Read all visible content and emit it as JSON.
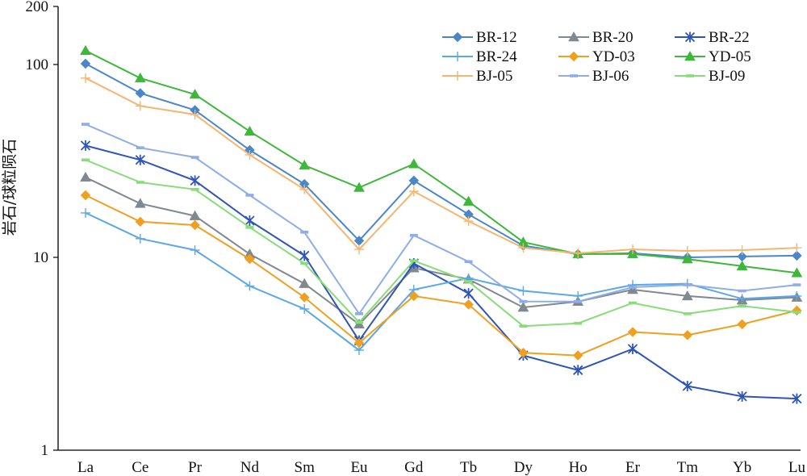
{
  "chart_data": {
    "type": "line",
    "xlabel": "",
    "ylabel": "岩石/球粒陨石",
    "yscale": "log",
    "ylim": [
      1,
      200
    ],
    "yticks": [
      "1",
      "10",
      "100",
      "200"
    ],
    "categories": [
      "La",
      "Ce",
      "Pr",
      "Nd",
      "Sm",
      "Eu",
      "Gd",
      "Tb",
      "Dy",
      "Ho",
      "Er",
      "Tm",
      "Yb",
      "Lu"
    ],
    "grid": false,
    "legend_position": "top-right",
    "series": [
      {
        "name": "BR-12",
        "color": "#4A86C8",
        "marker": "diamond",
        "values": [
          101,
          71,
          58,
          36,
          24,
          12.2,
          25,
          16.7,
          11.5,
          10.4,
          10.5,
          10,
          10.1,
          10.2
        ]
      },
      {
        "name": "BR-20",
        "color": "#808890",
        "marker": "triangle",
        "values": [
          26,
          19,
          16.4,
          10.4,
          7.3,
          4.5,
          8.8,
          7.7,
          5.5,
          5.9,
          6.8,
          6.3,
          6,
          6.2
        ]
      },
      {
        "name": "BR-22",
        "color": "#2F55B8",
        "marker": "star",
        "values": [
          38,
          32,
          25,
          15.5,
          10.2,
          3.7,
          9.3,
          6.5,
          3.1,
          2.6,
          3.35,
          2.15,
          1.9,
          1.85
        ]
      },
      {
        "name": "BR-24",
        "color": "#5AA8E8",
        "marker": "plus",
        "values": [
          17,
          12.5,
          10.9,
          7.1,
          5.4,
          3.3,
          6.8,
          7.8,
          6.7,
          6.3,
          7.2,
          7.3,
          6.1,
          6.3
        ]
      },
      {
        "name": "YD-03",
        "color": "#F0A020",
        "marker": "diamond",
        "values": [
          21,
          15.3,
          14.7,
          9.8,
          6.2,
          3.6,
          6.3,
          5.7,
          3.2,
          3.1,
          4.1,
          3.95,
          4.5,
          5.3
        ]
      },
      {
        "name": "YD-05",
        "color": "#3DB83A",
        "marker": "triangle",
        "values": [
          118,
          85,
          70,
          45,
          30,
          23,
          30.5,
          19.5,
          12,
          10.4,
          10.4,
          9.8,
          9,
          8.3
        ]
      },
      {
        "name": "BJ-05",
        "color": "#F6B570",
        "marker": "plus",
        "values": [
          85,
          61,
          55,
          34,
          22.5,
          11,
          22,
          15.4,
          11.2,
          10.5,
          11,
          10.8,
          10.9,
          11.2
        ]
      },
      {
        "name": "BJ-06",
        "color": "#8FADE8",
        "marker": "dash",
        "values": [
          49,
          37,
          33,
          21,
          13.5,
          5.1,
          13,
          9.5,
          5.9,
          5.9,
          7,
          7.2,
          6.7,
          7.2
        ]
      },
      {
        "name": "BJ-09",
        "color": "#88DC7A",
        "marker": "dash",
        "values": [
          32,
          24.5,
          22.5,
          14.3,
          9.3,
          4.6,
          9.6,
          7.5,
          4.4,
          4.55,
          5.8,
          5.1,
          5.6,
          5.2
        ]
      }
    ]
  }
}
